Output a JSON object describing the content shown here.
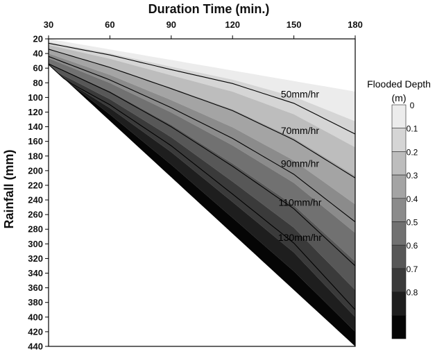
{
  "chart_data": {
    "type": "heatmap",
    "xlabel": "Duration Time (min.)",
    "ylabel": "Rainfall (mm)",
    "x_ticks": [
      30,
      60,
      90,
      120,
      150,
      180
    ],
    "y_ticks": [
      20,
      40,
      60,
      80,
      100,
      120,
      140,
      160,
      180,
      200,
      220,
      240,
      260,
      280,
      300,
      320,
      340,
      360,
      380,
      400,
      420,
      440
    ],
    "xlim": [
      30,
      180
    ],
    "ylim": [
      20,
      440
    ],
    "y_inverted": true,
    "x_axis_position": "top",
    "legend": {
      "title_line1": "Flooded Depth",
      "title_line2": "(m)",
      "placement": "right",
      "levels": [
        "0",
        "0.1",
        "0.2",
        "0.3",
        "0.4",
        "0.5",
        "0.6",
        "0.7",
        "0.8"
      ],
      "colors": [
        "#ececec",
        "#d5d5d5",
        "#bdbdbd",
        "#a4a4a4",
        "#8b8b8b",
        "#717171",
        "#575757",
        "#3a3a3a",
        "#1e1e1e",
        "#050505"
      ]
    },
    "contours": [
      {
        "name": "50mm/hr",
        "x": [
          30,
          60,
          90,
          120,
          150,
          180
        ],
        "y": [
          26,
          42,
          62,
          81,
          108,
          150
        ]
      },
      {
        "name": "70mm/hr",
        "x": [
          30,
          60,
          90,
          120,
          150,
          180
        ],
        "y": [
          34,
          59,
          88,
          118,
          158,
          210
        ]
      },
      {
        "name": "90mm/hr",
        "x": [
          30,
          60,
          90,
          120,
          150,
          180
        ],
        "y": [
          44,
          76,
          114,
          156,
          205,
          270
        ]
      },
      {
        "name": "110mm/hr",
        "x": [
          30,
          60,
          90,
          120,
          150,
          180
        ],
        "y": [
          54,
          93,
          140,
          194,
          252,
          330
        ]
      },
      {
        "name": "130mm/hr",
        "x": [
          30,
          60,
          90,
          120,
          150,
          180
        ],
        "y": [
          64,
          110,
          166,
          232,
          299,
          390
        ]
      }
    ],
    "contour_labels": [
      {
        "text": "50mm/hr",
        "x": 153,
        "y": 100
      },
      {
        "text": "70mm/hr",
        "x": 153,
        "y": 150
      },
      {
        "text": "90mm/hr",
        "x": 153,
        "y": 195
      },
      {
        "text": "110mm/hr",
        "x": 153,
        "y": 248
      },
      {
        "text": "130mm/hr",
        "x": 153,
        "y": 296
      }
    ],
    "data_region": {
      "lower_boundary": {
        "x": [
          30,
          180
        ],
        "y": [
          55,
          440
        ]
      }
    }
  }
}
